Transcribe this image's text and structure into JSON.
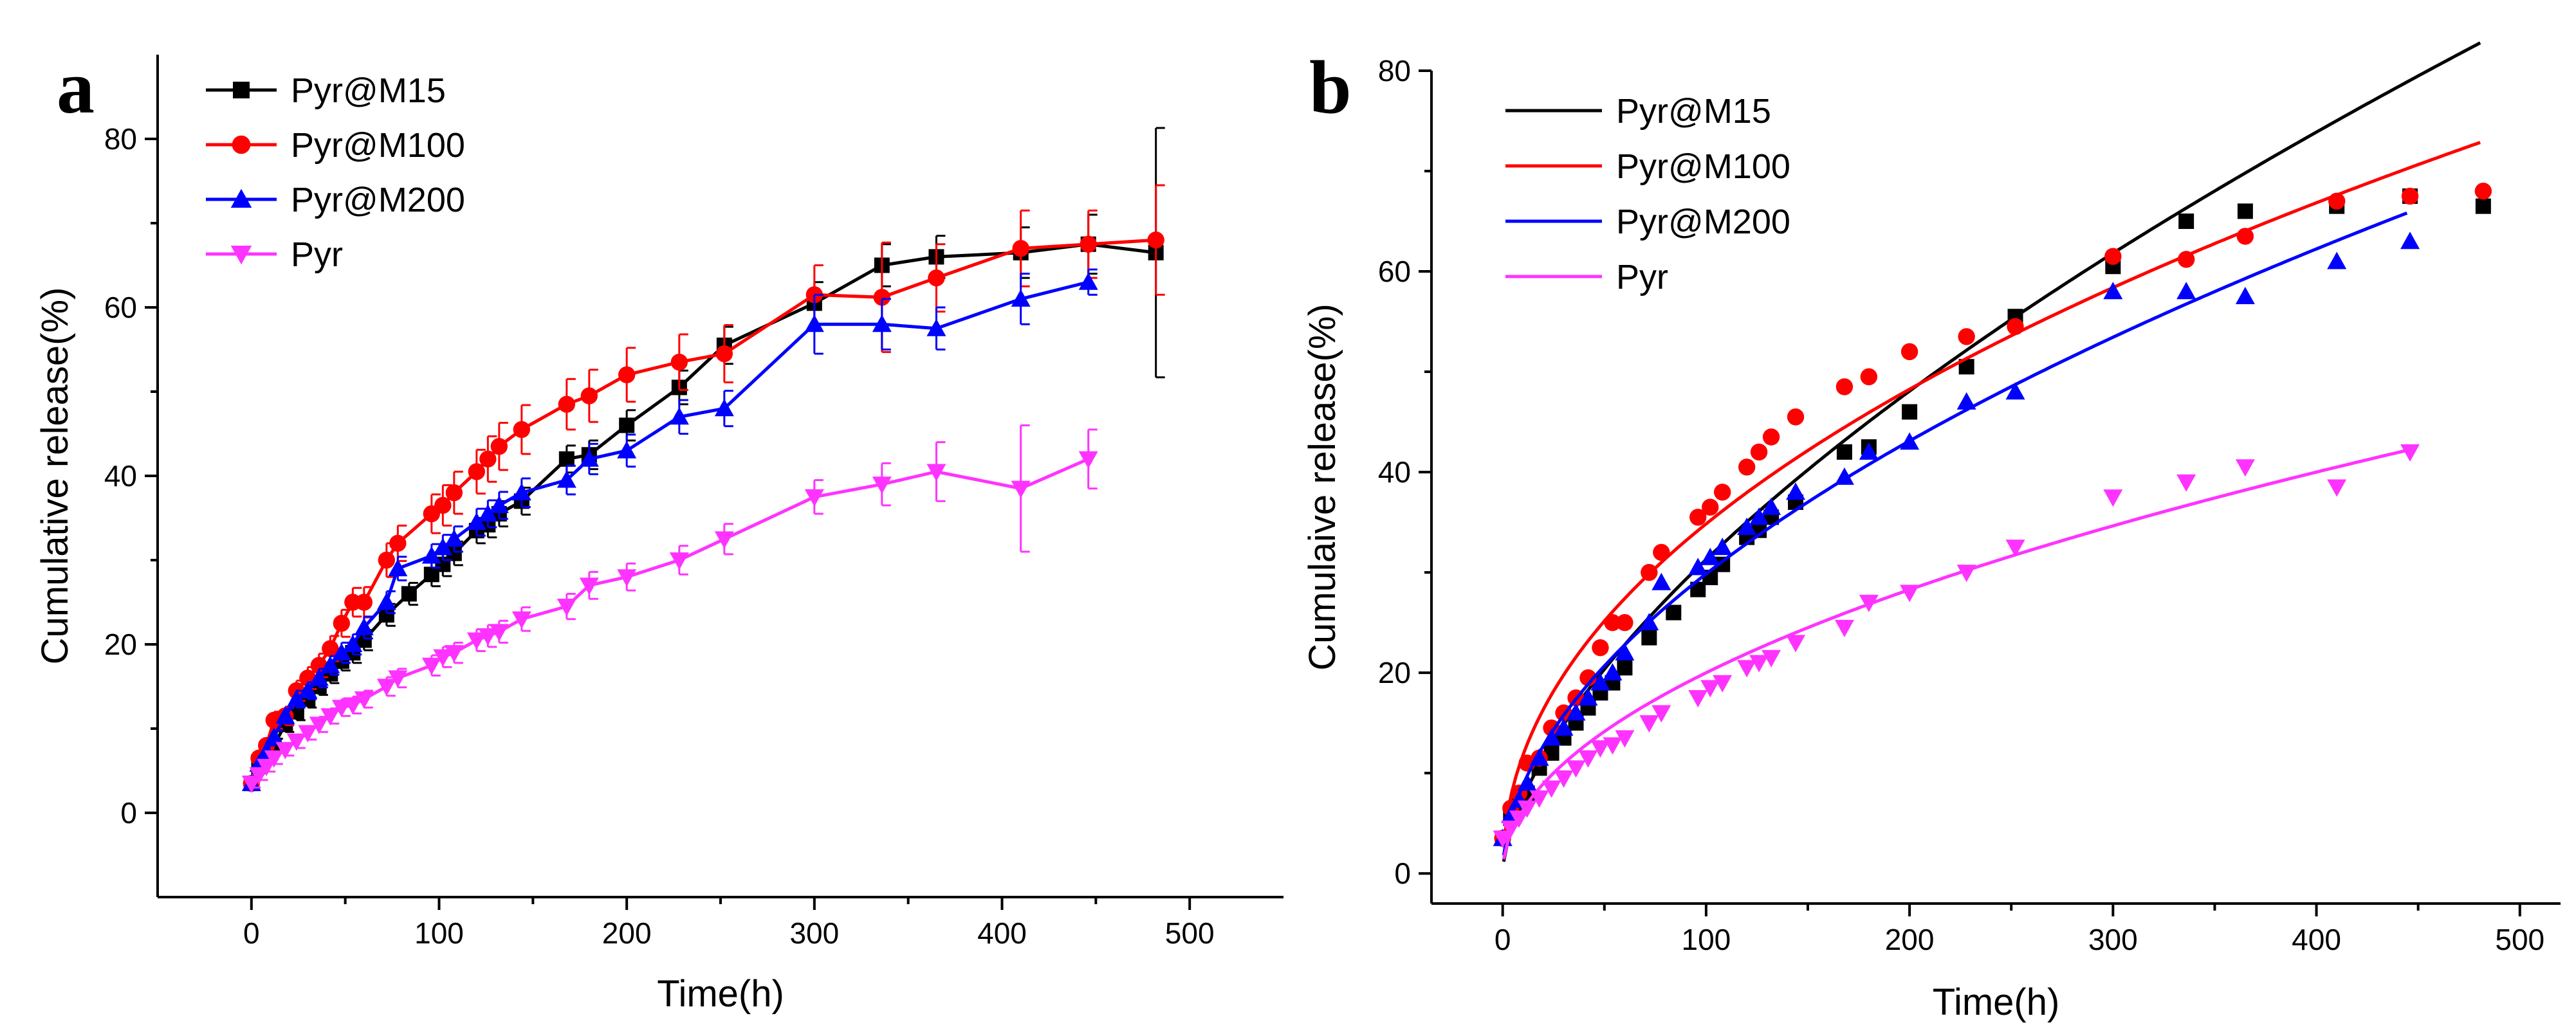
{
  "chart_data": [
    {
      "type": "line",
      "panel_label": "a",
      "xlabel": "Time(h)",
      "ylabel": "Cumulative release(%)",
      "xlim": [
        -50,
        550
      ],
      "ylim": [
        -10,
        90
      ],
      "xticks": [
        0,
        100,
        200,
        300,
        400,
        500
      ],
      "yticks": [
        0,
        20,
        40,
        60,
        80
      ],
      "legend_position": "top-left",
      "series": [
        {
          "name": "Pyr@M15",
          "color": "#000000",
          "marker": "square",
          "x": [
            0,
            4,
            8,
            12,
            18,
            24,
            30,
            36,
            42,
            48,
            54,
            60,
            72,
            84,
            96,
            102,
            108,
            120,
            126,
            132,
            144,
            168,
            180,
            200,
            228,
            252,
            300,
            336,
            365,
            410,
            446,
            482
          ],
          "y": [
            3.5,
            5.5,
            6.8,
            8.0,
            10.5,
            12.0,
            13.5,
            15.0,
            16.5,
            18.0,
            19.0,
            20.5,
            23.5,
            26.0,
            28.3,
            29.5,
            30.8,
            33.5,
            34.2,
            35.5,
            37.0,
            42.0,
            42.5,
            46.0,
            50.5,
            55.5,
            60.5,
            65.0,
            66.0,
            66.5,
            67.5,
            66.5
          ],
          "err": [
            0.5,
            0.6,
            0.7,
            0.8,
            0.9,
            1.0,
            1.0,
            1.0,
            1.1,
            1.1,
            1.2,
            1.2,
            1.3,
            1.3,
            1.4,
            1.4,
            1.4,
            1.5,
            1.5,
            1.5,
            1.6,
            1.6,
            1.7,
            1.8,
            2.0,
            2.2,
            2.5,
            2.5,
            2.5,
            3.0,
            3.5,
            14.8
          ]
        },
        {
          "name": "Pyr@M100",
          "color": "#ff0000",
          "marker": "circle",
          "x": [
            0,
            4,
            8,
            12,
            18,
            24,
            30,
            36,
            42,
            48,
            54,
            60,
            72,
            78,
            96,
            102,
            108,
            120,
            126,
            132,
            144,
            168,
            180,
            200,
            228,
            252,
            300,
            336,
            365,
            410,
            446,
            482
          ],
          "y": [
            3.5,
            6.5,
            8.0,
            11.0,
            11.5,
            14.5,
            16.0,
            17.5,
            19.5,
            22.5,
            25.0,
            25.0,
            30.0,
            32.0,
            35.5,
            36.5,
            38.0,
            40.5,
            42.0,
            43.5,
            45.5,
            48.5,
            49.5,
            52.0,
            53.5,
            54.5,
            61.5,
            61.2,
            63.5,
            67.0,
            67.5,
            68.0
          ],
          "err": [
            0.5,
            0.8,
            0.9,
            1.0,
            1.1,
            1.2,
            1.3,
            1.4,
            1.5,
            1.6,
            1.7,
            1.8,
            2.0,
            2.1,
            2.3,
            2.4,
            2.5,
            2.6,
            2.7,
            2.8,
            2.9,
            3.0,
            3.1,
            3.2,
            3.3,
            3.4,
            3.5,
            6.5,
            4.0,
            4.5,
            4.0,
            6.5
          ]
        },
        {
          "name": "Pyr@M200",
          "color": "#0000ff",
          "marker": "triangle-up",
          "x": [
            0,
            4,
            8,
            12,
            18,
            24,
            30,
            36,
            42,
            48,
            54,
            60,
            72,
            78,
            96,
            102,
            108,
            120,
            126,
            132,
            144,
            168,
            180,
            200,
            228,
            252,
            300,
            336,
            365,
            410,
            446
          ],
          "y": [
            3.5,
            5.8,
            7.3,
            9.0,
            11.5,
            13.5,
            14.5,
            16.0,
            17.5,
            19.0,
            20.0,
            22.0,
            25.0,
            29.0,
            30.5,
            31.5,
            32.5,
            34.5,
            35.5,
            36.5,
            38.0,
            39.5,
            42.0,
            43.0,
            47.0,
            48.0,
            58.0,
            58.0,
            57.5,
            61.0,
            63.0
          ],
          "err": [
            0.5,
            0.6,
            0.7,
            0.8,
            0.9,
            1.0,
            1.0,
            1.1,
            1.1,
            1.2,
            1.2,
            1.3,
            1.3,
            1.4,
            1.4,
            1.5,
            1.5,
            1.6,
            1.6,
            1.6,
            1.7,
            1.7,
            1.8,
            1.9,
            2.0,
            2.1,
            3.5,
            3.0,
            2.5,
            3.0,
            1.5
          ]
        },
        {
          "name": "Pyr",
          "color": "#ff33ff",
          "marker": "triangle-down",
          "x": [
            0,
            4,
            8,
            12,
            18,
            24,
            30,
            36,
            42,
            48,
            54,
            60,
            72,
            78,
            96,
            102,
            108,
            120,
            126,
            132,
            144,
            168,
            180,
            200,
            228,
            252,
            300,
            336,
            365,
            410,
            446
          ],
          "y": [
            3.5,
            4.5,
            5.5,
            6.5,
            7.5,
            8.5,
            9.5,
            10.5,
            11.5,
            12.5,
            12.8,
            13.5,
            15.0,
            16.0,
            17.5,
            18.5,
            19.0,
            20.5,
            21.0,
            21.5,
            23.0,
            24.5,
            27.0,
            28.0,
            30.0,
            32.5,
            37.5,
            39.0,
            40.5,
            38.5,
            42.0
          ],
          "err": [
            0.5,
            0.6,
            0.6,
            0.7,
            0.7,
            0.8,
            0.8,
            0.9,
            0.9,
            1.0,
            1.0,
            1.0,
            1.1,
            1.1,
            1.2,
            1.2,
            1.2,
            1.3,
            1.3,
            1.3,
            1.4,
            1.5,
            1.6,
            1.6,
            1.7,
            1.8,
            2.0,
            2.5,
            3.5,
            7.5,
            3.5
          ]
        }
      ]
    },
    {
      "type": "scatter",
      "panel_label": "b",
      "xlabel": "Time(h)",
      "ylabel": "Cumulaive release(%)",
      "xlim": [
        -35,
        520
      ],
      "ylim": [
        -3,
        80
      ],
      "xticks": [
        0,
        100,
        200,
        300,
        400,
        500
      ],
      "yticks": [
        0,
        20,
        40,
        60,
        80
      ],
      "legend_position": "top-left",
      "series": [
        {
          "name": "Pyr@M15",
          "color": "#000000",
          "marker": "square",
          "x": [
            0,
            4,
            8,
            12,
            18,
            24,
            30,
            36,
            42,
            48,
            54,
            60,
            72,
            84,
            96,
            102,
            108,
            120,
            126,
            132,
            144,
            168,
            180,
            200,
            228,
            252,
            300,
            336,
            365,
            410,
            446,
            482
          ],
          "y": [
            3.5,
            5.5,
            6.8,
            8.0,
            10.5,
            12.0,
            13.5,
            15.0,
            16.5,
            18.0,
            19.0,
            20.5,
            23.5,
            26.0,
            28.3,
            29.5,
            30.8,
            33.5,
            34.2,
            35.5,
            37.0,
            42.0,
            42.5,
            46.0,
            50.5,
            55.5,
            60.5,
            65.0,
            66.0,
            66.5,
            67.5,
            66.5
          ],
          "fit": {
            "k": 1.8,
            "n": 0.62,
            "x_max": 482
          }
        },
        {
          "name": "Pyr@M100",
          "color": "#ff0000",
          "marker": "circle",
          "x": [
            0,
            4,
            8,
            12,
            18,
            24,
            30,
            36,
            42,
            48,
            54,
            60,
            72,
            78,
            96,
            102,
            108,
            120,
            126,
            132,
            144,
            168,
            180,
            200,
            228,
            252,
            300,
            336,
            365,
            410,
            446,
            482
          ],
          "y": [
            3.5,
            6.5,
            8.0,
            11.0,
            11.5,
            14.5,
            16.0,
            17.5,
            19.5,
            22.5,
            25.0,
            25.0,
            30.0,
            32.0,
            35.5,
            36.5,
            38.0,
            40.5,
            42.0,
            43.5,
            45.5,
            48.5,
            49.5,
            52.0,
            53.5,
            54.5,
            61.5,
            61.2,
            63.5,
            67.0,
            67.5,
            68.0
          ],
          "fit": {
            "k": 4.0,
            "n": 0.47,
            "x_max": 482
          }
        },
        {
          "name": "Pyr@M200",
          "color": "#0000ff",
          "marker": "triangle-up",
          "x": [
            0,
            4,
            8,
            12,
            18,
            24,
            30,
            36,
            42,
            48,
            54,
            60,
            72,
            78,
            96,
            102,
            108,
            120,
            126,
            132,
            144,
            168,
            180,
            200,
            228,
            252,
            300,
            336,
            365,
            410,
            446
          ],
          "y": [
            3.5,
            5.8,
            7.3,
            9.0,
            11.5,
            13.5,
            14.5,
            16.0,
            17.5,
            19.0,
            20.0,
            22.0,
            25.0,
            29.0,
            30.5,
            31.5,
            32.5,
            34.5,
            35.5,
            36.5,
            38.0,
            39.5,
            42.0,
            43.0,
            47.0,
            48.0,
            58.0,
            58.0,
            57.5,
            61.0,
            63.0
          ],
          "fit": {
            "k": 2.6,
            "n": 0.53,
            "x_max": 446
          }
        },
        {
          "name": "Pyr",
          "color": "#ff33ff",
          "marker": "triangle-down",
          "x": [
            0,
            4,
            8,
            12,
            18,
            24,
            30,
            36,
            42,
            48,
            54,
            60,
            72,
            78,
            96,
            102,
            108,
            120,
            126,
            132,
            144,
            168,
            180,
            200,
            228,
            252,
            300,
            336,
            365,
            410,
            446
          ],
          "y": [
            3.5,
            4.5,
            5.5,
            6.5,
            7.5,
            8.5,
            9.5,
            10.5,
            11.5,
            12.5,
            12.8,
            13.5,
            15.0,
            16.0,
            17.5,
            18.5,
            19.0,
            20.5,
            21.0,
            21.5,
            23.0,
            24.5,
            27.0,
            28.0,
            30.0,
            32.5,
            37.5,
            39.0,
            40.5,
            38.5,
            42.0
          ],
          "fit": {
            "k": 2.0,
            "n": 0.5,
            "x_max": 446
          }
        }
      ]
    }
  ]
}
